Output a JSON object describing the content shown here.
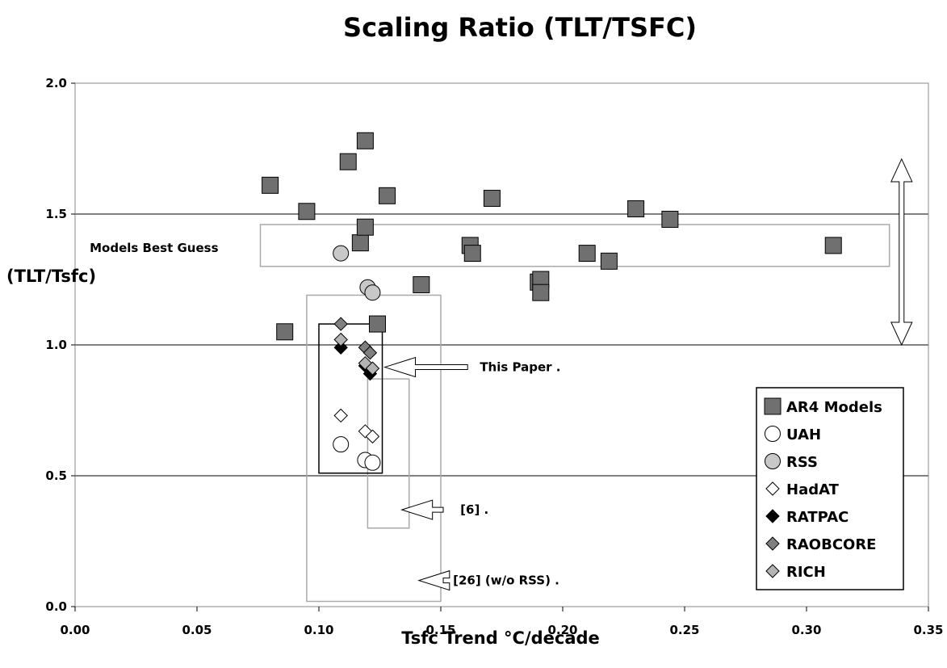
{
  "chart_data": {
    "type": "scatter",
    "title": "Scaling Ratio (TLT/TSFC)",
    "xlabel": "Tsfc Trend °C/decade",
    "ylabel": "(TLT/Tsfc)",
    "xlim": [
      0.0,
      0.35
    ],
    "ylim": [
      0.0,
      2.0
    ],
    "x_ticks": [
      "0.00",
      "0.05",
      "0.10",
      "0.15",
      "0.20",
      "0.25",
      "0.30",
      "0.35"
    ],
    "y_ticks": [
      "0.0",
      "0.5",
      "1.0",
      "1.5",
      "2.0"
    ],
    "grid": "horizontal",
    "legend_position": "right",
    "series": [
      {
        "name": "AR4 Models",
        "marker": "square",
        "fill": "#707070",
        "points": [
          [
            0.08,
            1.61
          ],
          [
            0.086,
            1.05
          ],
          [
            0.095,
            1.51
          ],
          [
            0.112,
            1.7
          ],
          [
            0.119,
            1.78
          ],
          [
            0.117,
            1.39
          ],
          [
            0.119,
            1.45
          ],
          [
            0.124,
            1.08
          ],
          [
            0.128,
            1.57
          ],
          [
            0.142,
            1.23
          ],
          [
            0.162,
            1.38
          ],
          [
            0.163,
            1.35
          ],
          [
            0.171,
            1.56
          ],
          [
            0.19,
            1.24
          ],
          [
            0.191,
            1.25
          ],
          [
            0.191,
            1.2
          ],
          [
            0.21,
            1.35
          ],
          [
            0.219,
            1.32
          ],
          [
            0.23,
            1.52
          ],
          [
            0.244,
            1.48
          ],
          [
            0.311,
            1.38
          ]
        ]
      },
      {
        "name": "UAH",
        "marker": "circle",
        "fill": "#ffffff",
        "points": [
          [
            0.109,
            0.62
          ],
          [
            0.119,
            0.56
          ],
          [
            0.122,
            0.55
          ]
        ]
      },
      {
        "name": "RSS",
        "marker": "circle",
        "fill": "#c8c8c8",
        "points": [
          [
            0.109,
            1.35
          ],
          [
            0.12,
            1.22
          ],
          [
            0.122,
            1.2
          ]
        ]
      },
      {
        "name": "HadAT",
        "marker": "diamond",
        "fill": "#ffffff",
        "points": [
          [
            0.109,
            0.73
          ],
          [
            0.119,
            0.67
          ],
          [
            0.122,
            0.65
          ]
        ]
      },
      {
        "name": "RATPAC",
        "marker": "diamond",
        "fill": "#000000",
        "points": [
          [
            0.109,
            0.99
          ],
          [
            0.119,
            0.92
          ],
          [
            0.121,
            0.89
          ]
        ]
      },
      {
        "name": "RAOBCORE",
        "marker": "diamond",
        "fill": "#808080",
        "points": [
          [
            0.109,
            1.08
          ],
          [
            0.119,
            0.99
          ],
          [
            0.121,
            0.97
          ]
        ]
      },
      {
        "name": "RICH",
        "marker": "diamond",
        "fill": "#b4b4b4",
        "points": [
          [
            0.109,
            1.02
          ],
          [
            0.119,
            0.93
          ],
          [
            0.122,
            0.91
          ]
        ]
      }
    ],
    "rectangles": [
      {
        "x": [
          0.076,
          0.334
        ],
        "y": [
          1.3,
          1.46
        ],
        "stroke": "#aaaaaa"
      },
      {
        "x": [
          0.095,
          0.15
        ],
        "y": [
          0.02,
          1.19
        ],
        "stroke": "#aaaaaa"
      },
      {
        "x": [
          0.12,
          0.137
        ],
        "y": [
          0.3,
          0.87
        ],
        "stroke": "#aaaaaa"
      },
      {
        "x": [
          0.1,
          0.126
        ],
        "y": [
          0.51,
          1.08
        ],
        "stroke": "#000000"
      }
    ],
    "annotations": [
      {
        "text": "Models Best Guess",
        "x": 0.006,
        "y": 1.37
      },
      {
        "text": "This Paper .",
        "x": 0.166,
        "y": 0.915,
        "arrow_from": 0.161,
        "arrow_to": 0.127
      },
      {
        "text": "[6] .",
        "x": 0.158,
        "y": 0.37,
        "arrow_from": 0.151,
        "arrow_to": 0.134
      },
      {
        "text": "[26] (w/o RSS) .",
        "x": 0.155,
        "y": 0.1,
        "arrow_from": 0.151,
        "arrow_to": 0.141
      }
    ],
    "range_arrow": {
      "x": 0.339,
      "y": [
        1.0,
        1.71
      ]
    }
  }
}
